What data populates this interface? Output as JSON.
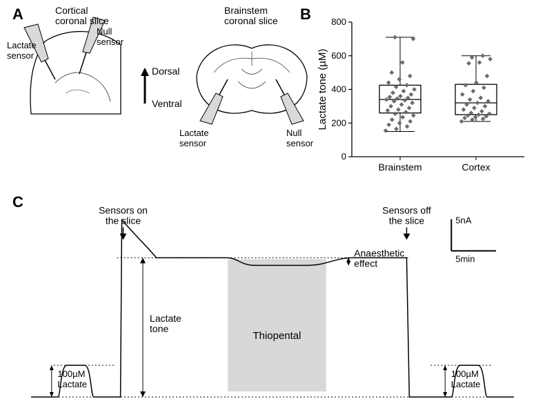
{
  "panelA": {
    "label": "A",
    "cortical": {
      "title": "Cortical\ncoronal slice",
      "lactate_sensor": "Lactate\nsensor",
      "null_sensor": "Null\nsensor"
    },
    "brainstem": {
      "title": "Brainstem\ncoronal slice"
    },
    "axis": {
      "dorsal": "Dorsal",
      "ventral": "Ventral"
    },
    "styling": {
      "stroke": "#000",
      "line_width": 1.3,
      "sensor_fill": "#d9d9d9",
      "slice_fill": "#ffffff"
    }
  },
  "panelB": {
    "label": "B",
    "ylabel": "Lactate tone (µM)",
    "ylim": [
      0,
      800
    ],
    "ytick_step": 200,
    "categories": [
      "Brainstem",
      "Cortex"
    ],
    "box": {
      "brainstem": {
        "min": 150,
        "q1": 260,
        "median": 340,
        "q3": 425,
        "max": 710
      },
      "cortex": {
        "min": 210,
        "q1": 250,
        "median": 320,
        "q3": 430,
        "max": 600
      }
    },
    "points": {
      "brainstem": [
        155,
        165,
        180,
        190,
        200,
        210,
        220,
        235,
        245,
        255,
        265,
        275,
        280,
        290,
        300,
        310,
        320,
        330,
        335,
        340,
        345,
        350,
        355,
        360,
        370,
        380,
        390,
        400,
        415,
        425,
        440,
        460,
        480,
        500,
        560,
        700,
        710
      ],
      "cortex": [
        210,
        220,
        225,
        230,
        235,
        240,
        245,
        250,
        255,
        260,
        270,
        280,
        290,
        300,
        310,
        320,
        330,
        340,
        350,
        370,
        390,
        410,
        425,
        440,
        480,
        555,
        560,
        580,
        590,
        600
      ]
    },
    "styling": {
      "axis_color": "#000",
      "box_color": "#000",
      "marker_fill": "#6e6e6e",
      "marker_size": 6,
      "tick_fontsize": 13,
      "label_fontsize": 15,
      "bg": "#ffffff"
    }
  },
  "panelC": {
    "label": "C",
    "annotations": {
      "sensors_on": "Sensors on\nthe slice",
      "sensors_off": "Sensors off\nthe slice",
      "lactate_tone": "Lactate\ntone",
      "thiopental": "Thiopental",
      "anaesthetic": "Anaesthetic\neffect",
      "calib": "100µM\nLactate"
    },
    "scalebar": {
      "y_label": "5nA",
      "x_label": "5min"
    },
    "trace": {
      "baseline_nA": 0,
      "calib_pulse_nA": 5,
      "tone_nA": 22,
      "onset_peak_nA": 28,
      "thiopental_drop_nA": 1.2,
      "t_start_min": -2,
      "t_end_min": 52,
      "segments": {
        "calib1": {
          "start": 1,
          "end": 5
        },
        "sensors_on": 8,
        "plateau": {
          "start": 12,
          "end": 40
        },
        "thiopental": {
          "start": 20,
          "end": 31
        },
        "sensors_off": 40,
        "calib2": {
          "start": 45,
          "end": 49
        }
      }
    },
    "styling": {
      "stroke": "#000",
      "line_width": 1.5,
      "thiopental_fill": "#d8d8d8",
      "dotted": "#000",
      "font_size": 14,
      "bg": "#ffffff"
    }
  }
}
